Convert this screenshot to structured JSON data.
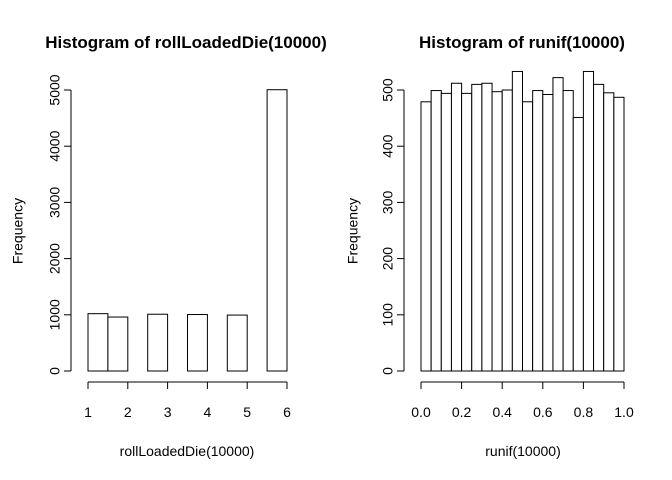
{
  "chart_data": [
    {
      "type": "bar",
      "title": "Histogram of rollLoadedDie(10000)",
      "xlabel": "rollLoadedDie(10000)",
      "ylabel": "Frequency",
      "x_bin_edges": [
        1.0,
        1.5,
        2.0,
        2.5,
        3.0,
        3.5,
        4.0,
        4.5,
        5.0,
        5.5,
        6.0
      ],
      "values": [
        1020,
        960,
        0,
        1010,
        0,
        1005,
        0,
        995,
        0,
        5005
      ],
      "xlim": [
        1,
        6
      ],
      "ylim": [
        0,
        5000
      ],
      "x_ticks": [
        1,
        2,
        3,
        4,
        5,
        6
      ],
      "y_ticks": [
        0,
        1000,
        2000,
        3000,
        4000,
        5000
      ],
      "grid": false,
      "legend": "none"
    },
    {
      "type": "bar",
      "title": "Histogram of runif(10000)",
      "xlabel": "runif(10000)",
      "ylabel": "Frequency",
      "x_bin_edges": [
        0.0,
        0.05,
        0.1,
        0.15,
        0.2,
        0.25,
        0.3,
        0.35,
        0.4,
        0.45,
        0.5,
        0.55,
        0.6,
        0.65,
        0.7,
        0.75,
        0.8,
        0.85,
        0.9,
        0.95,
        1.0
      ],
      "values": [
        479,
        499,
        494,
        512,
        494,
        510,
        512,
        497,
        500,
        533,
        479,
        499,
        492,
        522,
        499,
        451,
        533,
        510,
        495,
        487
      ],
      "xlim": [
        0,
        1
      ],
      "ylim": [
        0,
        500
      ],
      "x_ticks": [
        "0.0",
        "0.2",
        "0.4",
        "0.6",
        "0.8",
        "1.0"
      ],
      "y_ticks": [
        0,
        100,
        200,
        300,
        400,
        500
      ],
      "grid": false,
      "legend": "none"
    }
  ]
}
